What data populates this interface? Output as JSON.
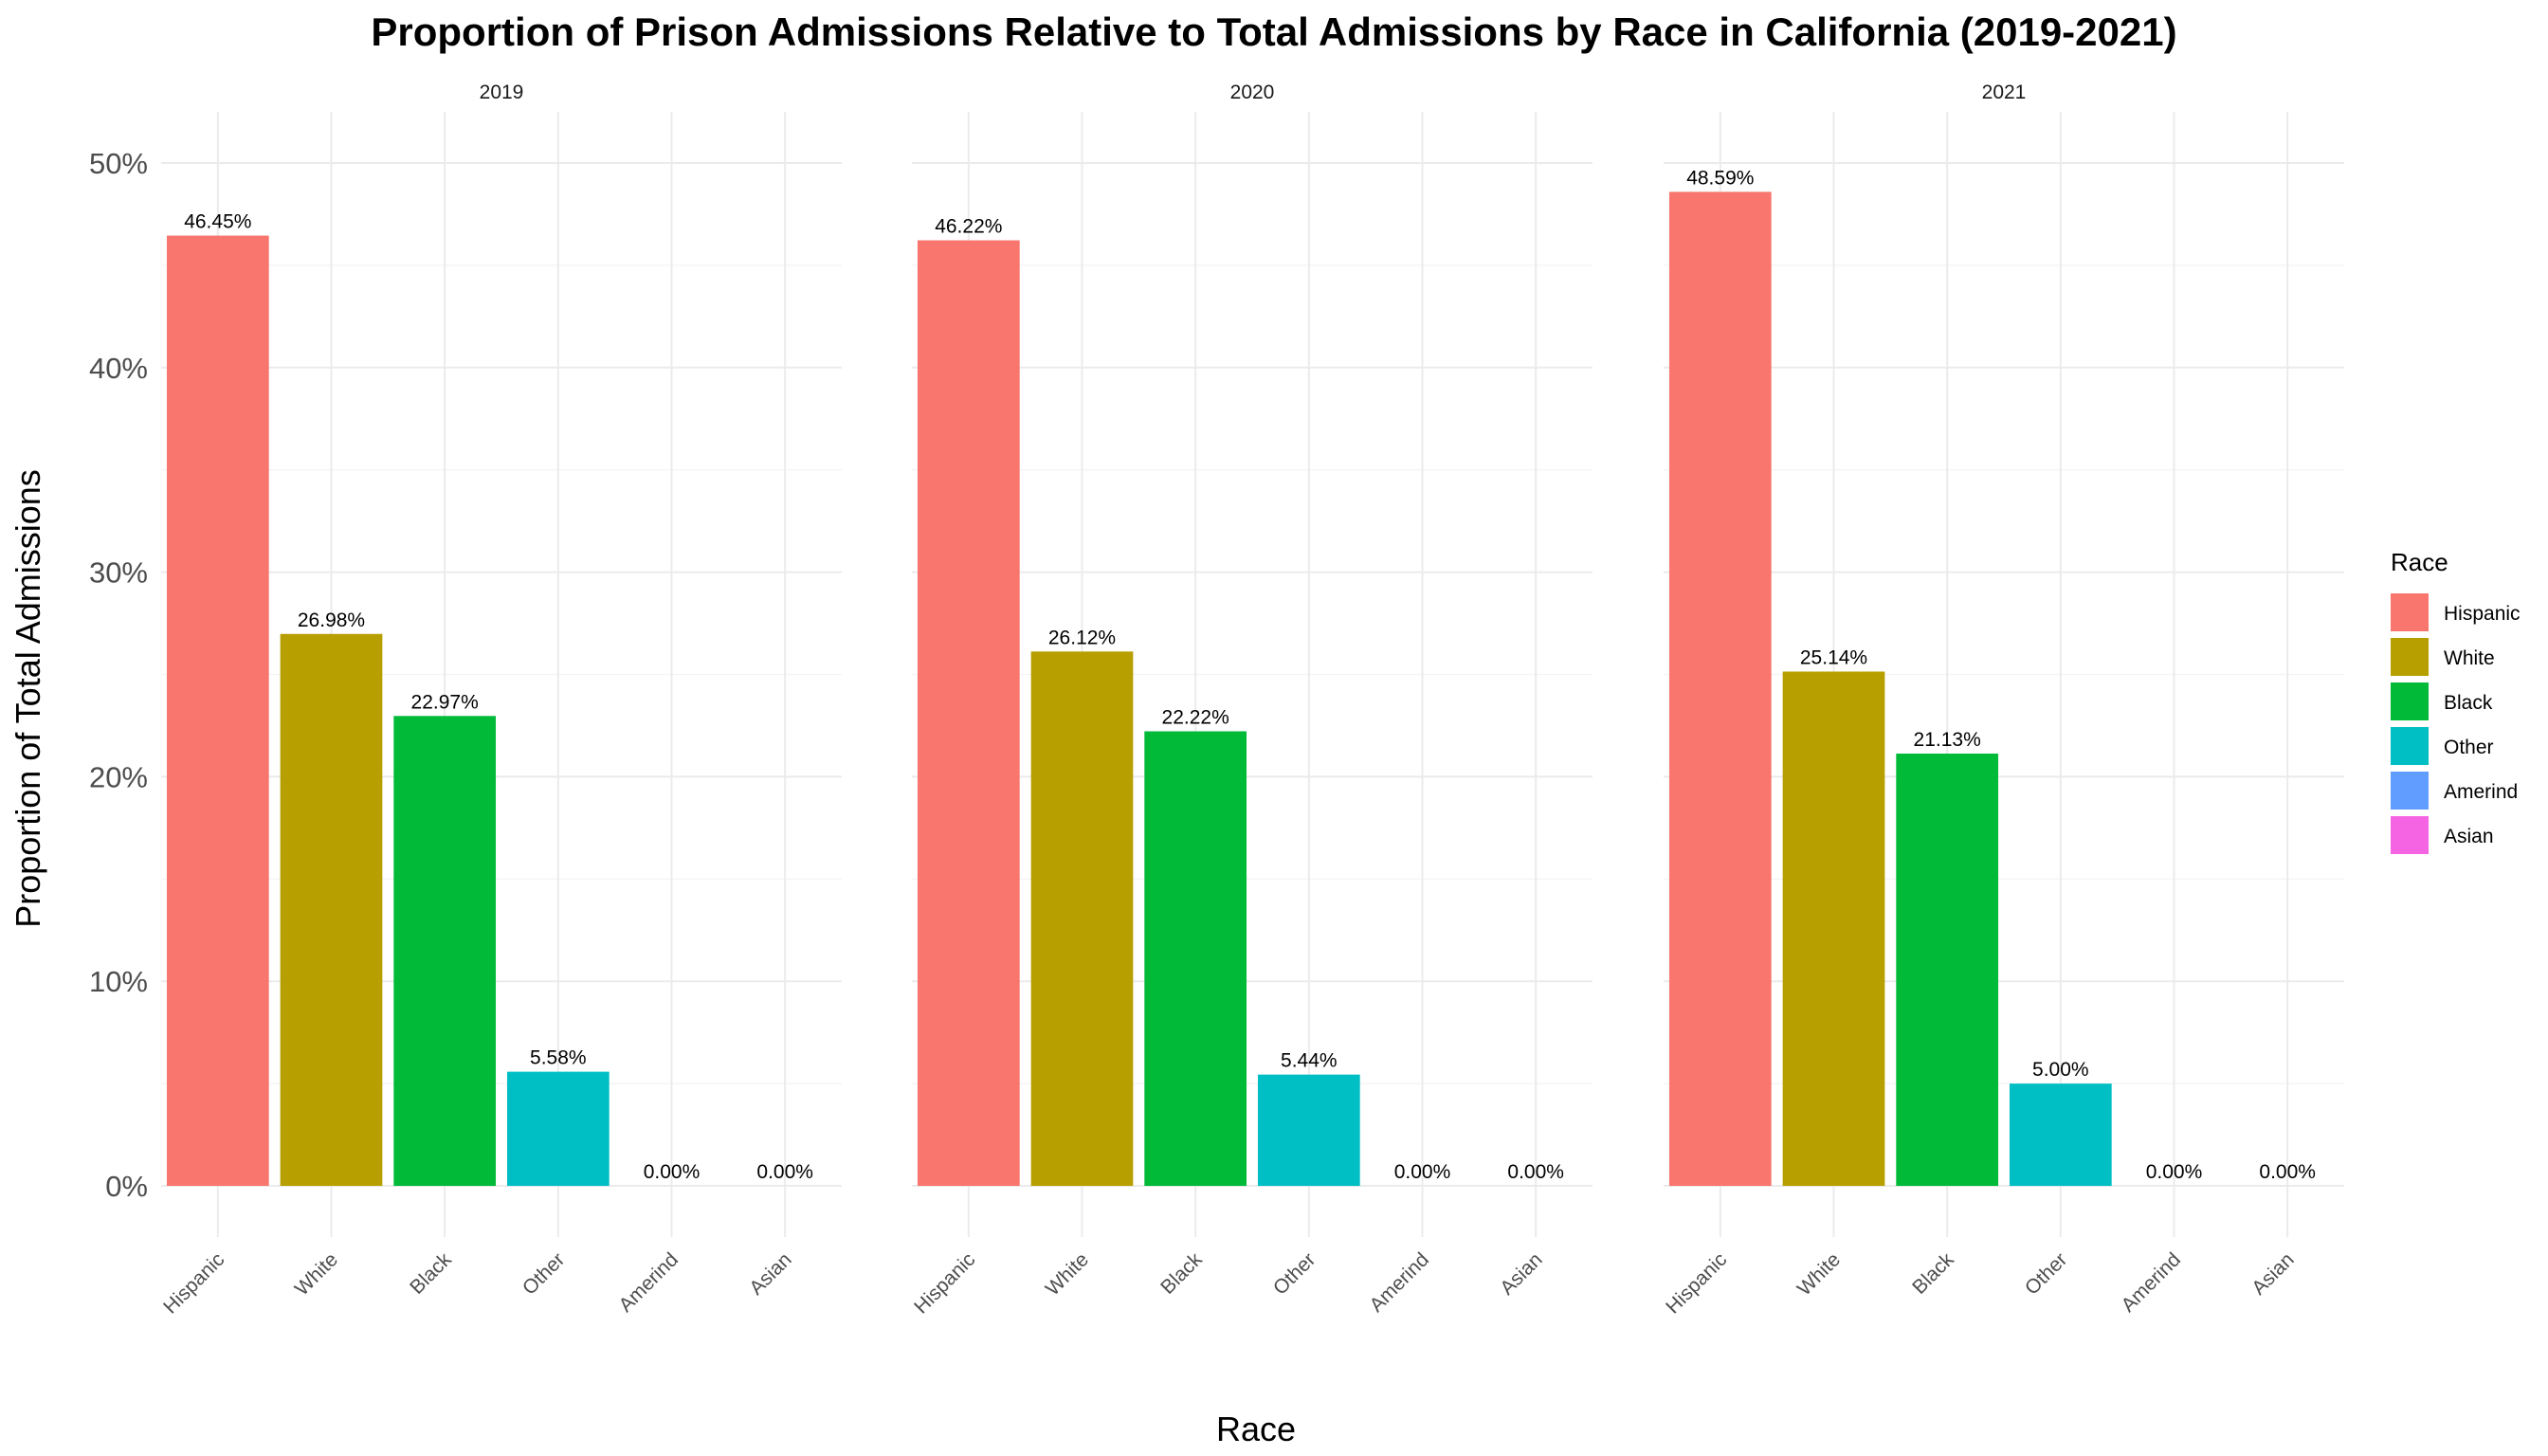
{
  "chart_data": {
    "type": "bar",
    "title": "Proportion of Prison Admissions Relative to Total Admissions by Race in California (2019-2021)",
    "xlabel": "Race",
    "ylabel": "Proportion of Total Admissions",
    "ylim": [
      0,
      50
    ],
    "yticks": [
      0,
      10,
      20,
      30,
      40,
      50
    ],
    "ytick_labels": [
      "0%",
      "10%",
      "20%",
      "30%",
      "40%",
      "50%"
    ],
    "grid": true,
    "legend_position": "right",
    "legend_title": "Race",
    "categories": [
      "Hispanic",
      "White",
      "Black",
      "Other",
      "Amerind",
      "Asian"
    ],
    "colors": {
      "Hispanic": "#F8766D",
      "White": "#B79F00",
      "Black": "#00BA38",
      "Other": "#00BFC4",
      "Amerind": "#619CFF",
      "Asian": "#F564E3"
    },
    "facets": [
      {
        "label": "2019",
        "values": [
          46.45,
          26.98,
          22.97,
          5.58,
          0.0,
          0.0
        ],
        "value_labels": [
          "46.45%",
          "26.98%",
          "22.97%",
          "5.58%",
          "0.00%",
          "0.00%"
        ]
      },
      {
        "label": "2020",
        "values": [
          46.22,
          26.12,
          22.22,
          5.44,
          0.0,
          0.0
        ],
        "value_labels": [
          "46.22%",
          "26.12%",
          "22.22%",
          "5.44%",
          "0.00%",
          "0.00%"
        ]
      },
      {
        "label": "2021",
        "values": [
          48.59,
          25.14,
          21.13,
          5.0,
          0.0,
          0.0
        ],
        "value_labels": [
          "48.59%",
          "25.14%",
          "21.13%",
          "5.00%",
          "0.00%",
          "0.00%"
        ]
      }
    ]
  }
}
